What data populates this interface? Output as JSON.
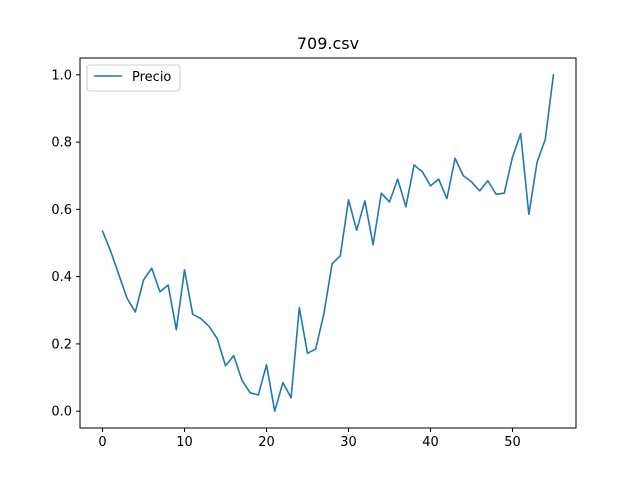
{
  "chart_data": {
    "type": "line",
    "title": "709.csv",
    "xlabel": "",
    "ylabel": "",
    "xlim": [
      -2.75,
      57.75
    ],
    "ylim": [
      -0.05,
      1.05
    ],
    "xticks": [
      0,
      10,
      20,
      30,
      40,
      50
    ],
    "yticks": [
      0.0,
      0.2,
      0.4,
      0.6,
      0.8,
      1.0
    ],
    "xtick_labels": [
      "0",
      "10",
      "20",
      "30",
      "40",
      "50"
    ],
    "ytick_labels": [
      "0.0",
      "0.2",
      "0.4",
      "0.6",
      "0.8",
      "1.0"
    ],
    "grid": false,
    "legend": {
      "position": "upper left",
      "entries": [
        "Precio"
      ]
    },
    "series": [
      {
        "name": "Precio",
        "color": "#1f77b4",
        "x": [
          0,
          1,
          2,
          3,
          4,
          5,
          6,
          7,
          8,
          9,
          10,
          11,
          12,
          13,
          14,
          15,
          16,
          17,
          18,
          19,
          20,
          21,
          22,
          23,
          24,
          25,
          26,
          27,
          28,
          29,
          30,
          31,
          32,
          33,
          34,
          35,
          36,
          37,
          38,
          39,
          40,
          41,
          42,
          43,
          44,
          45,
          46,
          47,
          48,
          49,
          50,
          51,
          52,
          53,
          54,
          55
        ],
        "y": [
          0.535,
          0.475,
          0.405,
          0.335,
          0.295,
          0.39,
          0.425,
          0.355,
          0.375,
          0.242,
          0.42,
          0.288,
          0.275,
          0.252,
          0.215,
          0.135,
          0.165,
          0.092,
          0.055,
          0.048,
          0.138,
          0.0,
          0.085,
          0.04,
          0.308,
          0.172,
          0.185,
          0.29,
          0.438,
          0.462,
          0.628,
          0.538,
          0.625,
          0.495,
          0.648,
          0.622,
          0.69,
          0.608,
          0.732,
          0.712,
          0.67,
          0.69,
          0.632,
          0.752,
          0.7,
          0.682,
          0.655,
          0.685,
          0.645,
          0.648,
          0.755,
          0.825,
          0.585,
          0.74,
          0.808,
          1.0
        ]
      }
    ]
  }
}
